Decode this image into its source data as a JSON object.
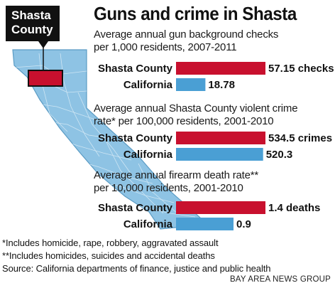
{
  "title": "Guns and crime in Shasta",
  "callout": {
    "line1": "Shasta",
    "line2": "County"
  },
  "colors": {
    "shasta": "#c8102e",
    "california": "#4a9fd4",
    "map_fill": "#8ec3e4",
    "map_highlight": "#c8102e"
  },
  "chart_data": [
    {
      "type": "bar",
      "title": "Average annual gun background checks per 1,000 residents, 2007-2011",
      "title_lines": [
        "Average annual gun background checks",
        "per 1,000 residents, 2007-2011"
      ],
      "categories": [
        "Shasta County",
        "California"
      ],
      "values": [
        57.15,
        18.78
      ],
      "value_labels": [
        "57.15 checks",
        "18.78"
      ],
      "xlim": [
        0,
        57.15
      ]
    },
    {
      "type": "bar",
      "title": "Average annual Shasta County violent crime rate* per 100,000 residents, 2001-2010",
      "title_lines": [
        "Average annual Shasta County violent crime",
        "rate* per 100,000 residents, 2001-2010"
      ],
      "categories": [
        "Shasta County",
        "California"
      ],
      "values": [
        534.5,
        520.3
      ],
      "value_labels": [
        "534.5 crimes",
        "520.3"
      ],
      "xlim": [
        0,
        534.5
      ]
    },
    {
      "type": "bar",
      "title": "Average annual firearm death rate** per 10,000 residents, 2001-2010",
      "title_lines": [
        "Average annual firearm death rate**",
        "per 10,000 residents, 2001-2010"
      ],
      "categories": [
        "Shasta County",
        "California"
      ],
      "values": [
        1.4,
        0.9
      ],
      "value_labels": [
        "1.4 deaths",
        "0.9"
      ],
      "xlim": [
        0,
        1.4
      ]
    }
  ],
  "notes": {
    "note1": "*Includes homicide, rape, robbery, aggravated assault",
    "note2": "**Includes homicides, suicides and accidental deaths",
    "source": "Source: California departments of finance, justice and public health"
  },
  "credit": "BAY AREA NEWS GROUP"
}
